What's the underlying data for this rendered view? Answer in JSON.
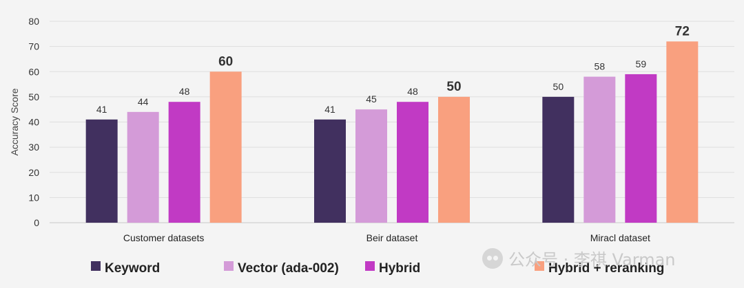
{
  "chart_data": {
    "type": "bar",
    "ylabel": "Accuracy Score",
    "ylim": [
      0,
      80
    ],
    "yticks": [
      0,
      10,
      20,
      30,
      40,
      50,
      60,
      70,
      80
    ],
    "grid": true,
    "legend_position": "bottom",
    "categories": [
      "Customer datasets",
      "Beir dataset",
      "Miracl dataset"
    ],
    "series": [
      {
        "name": "Keyword",
        "color": "#41305f",
        "values": [
          41,
          41,
          50
        ]
      },
      {
        "name": "Vector (ada-002)",
        "color": "#d49bd8",
        "values": [
          44,
          45,
          58
        ]
      },
      {
        "name": "Hybrid",
        "color": "#c13ac4",
        "values": [
          48,
          48,
          59
        ]
      },
      {
        "name": "Hybrid + reranking",
        "color": "#f9a07f",
        "values": [
          60,
          50,
          72
        ],
        "bold_labels": true
      }
    ]
  },
  "watermark": {
    "text": "公众号 · 李祺 Varman",
    "icon": "wechat-icon"
  }
}
